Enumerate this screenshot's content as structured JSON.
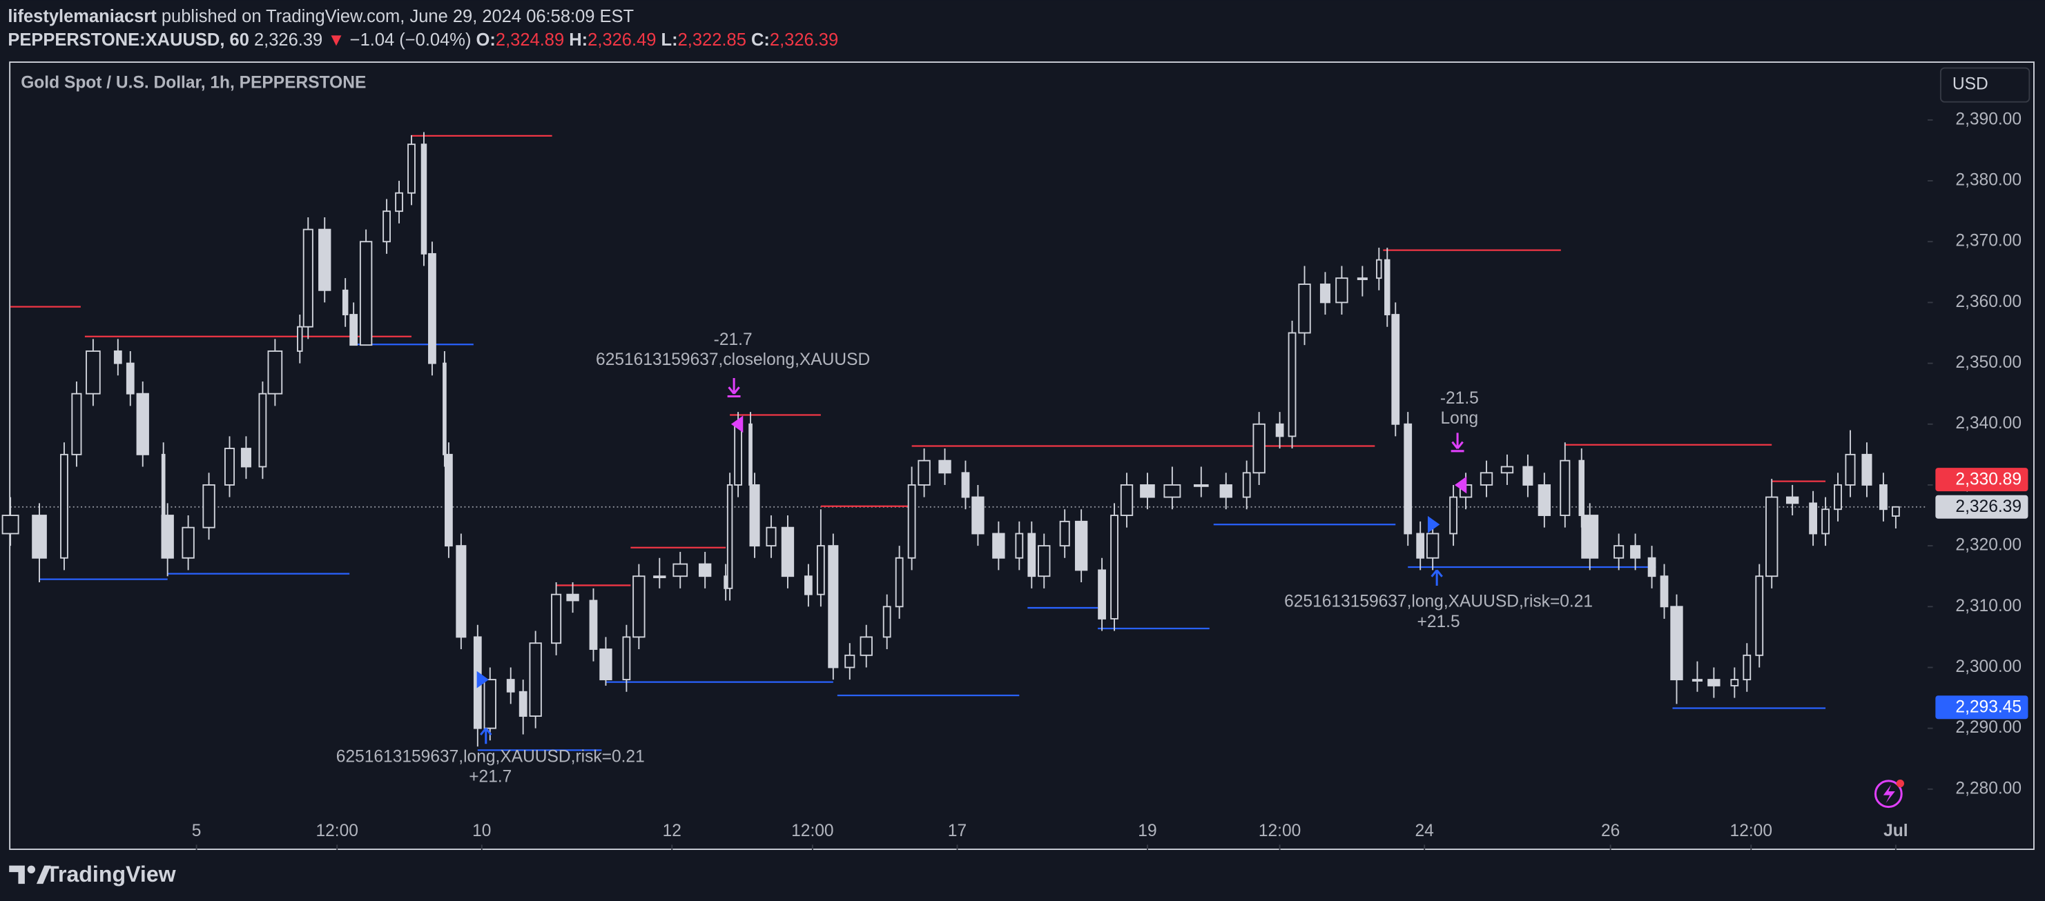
{
  "header": {
    "author": "lifestylemaniacsrt",
    "published": "published on TradingView.com, June 29, 2024 06:58:09 EST",
    "symbol": "PEPPERSTONE:XAUUSD, 60",
    "last": "2,326.39",
    "arrow": "▼",
    "change": "−1.04 (−0.04%)",
    "o_label": "O:",
    "o": "2,324.89",
    "h_label": "H:",
    "h": "2,326.49",
    "l_label": "L:",
    "l": "2,322.85",
    "c_label": "C:",
    "c": "2,326.39"
  },
  "footer": {
    "brand": "TradingView"
  },
  "chart_data": {
    "type": "candlestick",
    "title": "Gold Spot / U.S. Dollar, 1h, PEPPERSTONE",
    "currency": "USD",
    "up_color": "#d1d4dc",
    "down_color": "#d1d4dc",
    "x": [
      0,
      7,
      13,
      16,
      20,
      26,
      29,
      32,
      37,
      38,
      43,
      48,
      53,
      57,
      61,
      64,
      70,
      72,
      76,
      81,
      83,
      86,
      91,
      94,
      97,
      100,
      102,
      105,
      106,
      109,
      113,
      116,
      121,
      124,
      127,
      132,
      136,
      141,
      144,
      149,
      152,
      157,
      162,
      168,
      173,
      174,
      176,
      179,
      180,
      184,
      188,
      193,
      196,
      199,
      203,
      207,
      212,
      215,
      218,
      221,
      226,
      231,
      234,
      239,
      244,
      247,
      250,
      255,
      259,
      264,
      267,
      270,
      275,
      281,
      288,
      294,
      299,
      302,
      307,
      310,
      313,
      318,
      322,
      327,
      331,
      333,
      335,
      338,
      341,
      344,
      349,
      352,
      357,
      362,
      367,
      371,
      376,
      380,
      382,
      389,
      393,
      397,
      400,
      403,
      408,
      412,
      417,
      420,
      423,
      426,
      431,
      436,
      439,
      442,
      445,
      449,
      453,
      456
    ],
    "open": [
      2322,
      2325,
      2318,
      2335,
      2345,
      2352,
      2350,
      2345,
      2335,
      2325,
      2318,
      2323,
      2330,
      2336,
      2333,
      2345,
      2352,
      2356,
      2372,
      2362,
      2358,
      2353,
      2370,
      2375,
      2378,
      2386,
      2368,
      2350,
      2335,
      2320,
      2305,
      2290,
      2298,
      2296,
      2292,
      2304,
      2312,
      2311,
      2303,
      2298,
      2305,
      2315,
      2315,
      2317,
      2315,
      2313,
      2330,
      2340,
      2330,
      2320,
      2323,
      2315,
      2312,
      2320,
      2300,
      2302,
      2305,
      2310,
      2318,
      2330,
      2334,
      2332,
      2328,
      2322,
      2318,
      2322,
      2315,
      2320,
      2324,
      2316,
      2308,
      2325,
      2330,
      2328,
      2330,
      2330,
      2328,
      2332,
      2340,
      2338,
      2355,
      2363,
      2360,
      2364,
      2364,
      2367,
      2358,
      2340,
      2322,
      2318,
      2322,
      2328,
      2330,
      2332,
      2333,
      2330,
      2325,
      2334,
      2325,
      2318,
      2320,
      2318,
      2315,
      2310,
      2298,
      2298,
      2297,
      2298,
      2302,
      2315,
      2328,
      2327,
      2322,
      2326,
      2330,
      2335,
      2330,
      2324.89
    ],
    "high": [
      2328,
      2327,
      2337,
      2347,
      2354,
      2354,
      2352,
      2347,
      2337,
      2327,
      2325,
      2332,
      2338,
      2338,
      2347,
      2354,
      2358,
      2374,
      2374,
      2364,
      2360,
      2372,
      2377,
      2380,
      2387.5,
      2388,
      2370,
      2352,
      2337,
      2322,
      2307,
      2300,
      2300,
      2298,
      2306,
      2314,
      2314,
      2313,
      2305,
      2307,
      2317,
      2318,
      2319,
      2319,
      2317,
      2332,
      2342,
      2342,
      2332,
      2325,
      2325,
      2317,
      2326,
      2322,
      2304,
      2307,
      2312,
      2320,
      2333,
      2336,
      2336,
      2334,
      2330,
      2324,
      2324,
      2324,
      2322,
      2326,
      2326,
      2318,
      2327,
      2332,
      2332,
      2333,
      2333,
      2332,
      2334,
      2342,
      2342,
      2357,
      2366,
      2365,
      2366,
      2366,
      2369,
      2369,
      2360,
      2342,
      2324,
      2324,
      2330,
      2332,
      2334,
      2335,
      2335,
      2332,
      2337,
      2336,
      2327,
      2322,
      2322,
      2320,
      2317,
      2312,
      2301,
      2300,
      2300,
      2304,
      2317,
      2331,
      2330,
      2329,
      2328,
      2332,
      2339,
      2337,
      2332,
      2326.49
    ],
    "low": [
      2320,
      2314,
      2316,
      2333,
      2343,
      2348,
      2343,
      2333,
      2323,
      2315,
      2316,
      2321,
      2328,
      2331,
      2331,
      2343,
      2350,
      2354,
      2360,
      2356,
      2353,
      2353,
      2368,
      2373,
      2376,
      2366,
      2348,
      2333,
      2318,
      2303,
      2287,
      2288,
      2294,
      2289,
      2290,
      2302,
      2309,
      2301,
      2297,
      2296,
      2303,
      2313,
      2313,
      2313,
      2311,
      2311,
      2328,
      2328,
      2318,
      2318,
      2313,
      2310,
      2310,
      2298,
      2298,
      2300,
      2303,
      2308,
      2316,
      2328,
      2330,
      2326,
      2320,
      2316,
      2316,
      2313,
      2313,
      2318,
      2314,
      2306,
      2306,
      2323,
      2326,
      2326,
      2328,
      2326,
      2326,
      2330,
      2336,
      2336,
      2353,
      2358,
      2358,
      2361,
      2362,
      2356,
      2338,
      2320,
      2316,
      2316,
      2320,
      2326,
      2328,
      2330,
      2328,
      2323,
      2323,
      2323,
      2316,
      2316,
      2316,
      2313,
      2308,
      2294,
      2296,
      2295,
      2295,
      2296,
      2300,
      2313,
      2325,
      2320,
      2320,
      2324,
      2328,
      2328,
      2324,
      2322.85
    ],
    "close": [
      2325,
      2318,
      2335,
      2345,
      2352,
      2350,
      2345,
      2335,
      2325,
      2318,
      2323,
      2330,
      2336,
      2333,
      2345,
      2352,
      2356,
      2372,
      2362,
      2358,
      2353,
      2370,
      2375,
      2378,
      2386,
      2368,
      2350,
      2335,
      2320,
      2305,
      2290,
      2298,
      2296,
      2292,
      2304,
      2312,
      2311,
      2303,
      2298,
      2305,
      2315,
      2315,
      2317,
      2315,
      2313,
      2330,
      2340,
      2330,
      2320,
      2323,
      2315,
      2312,
      2320,
      2300,
      2302,
      2305,
      2310,
      2318,
      2330,
      2334,
      2332,
      2328,
      2322,
      2318,
      2322,
      2315,
      2320,
      2324,
      2316,
      2308,
      2325,
      2330,
      2328,
      2330,
      2330,
      2328,
      2332,
      2340,
      2338,
      2355,
      2363,
      2360,
      2364,
      2364,
      2367,
      2358,
      2340,
      2322,
      2318,
      2322,
      2328,
      2330,
      2332,
      2333,
      2330,
      2325,
      2334,
      2325,
      2318,
      2320,
      2318,
      2315,
      2310,
      2298,
      2298,
      2297,
      2298,
      2302,
      2315,
      2328,
      2327,
      2322,
      2326,
      2330,
      2335,
      2330,
      2326,
      2326.39
    ],
    "xlim": [
      0,
      463.7
    ],
    "ylim": [
      2270,
      2399.4
    ],
    "xticks": [
      {
        "value": 45,
        "label": "5"
      },
      {
        "value": 79,
        "label": "12:00"
      },
      {
        "value": 114,
        "label": "10"
      },
      {
        "value": 160,
        "label": "12"
      },
      {
        "value": 194,
        "label": "12:00"
      },
      {
        "value": 229,
        "label": "17"
      },
      {
        "value": 275,
        "label": "19"
      },
      {
        "value": 307,
        "label": "12:00"
      },
      {
        "value": 342,
        "label": "24"
      },
      {
        "value": 387,
        "label": "26"
      },
      {
        "value": 421,
        "label": "12:00"
      },
      {
        "value": 456,
        "label": "Jul"
      }
    ],
    "yticks": [
      {
        "value": 2280,
        "label": "2,280.00"
      },
      {
        "value": 2290,
        "label": "2,290.00"
      },
      {
        "value": 2300,
        "label": "2,300.00"
      },
      {
        "value": 2310,
        "label": "2,310.00"
      },
      {
        "value": 2320,
        "label": "2,320.00"
      },
      {
        "value": 2330,
        "label": "2,330.00"
      },
      {
        "value": 2340,
        "label": "2,340.00"
      },
      {
        "value": 2350,
        "label": "2,350.00"
      },
      {
        "value": 2360,
        "label": "2,360.00"
      },
      {
        "value": 2370,
        "label": "2,370.00"
      },
      {
        "value": 2380,
        "label": "2,380.00"
      },
      {
        "value": 2390,
        "label": "2,390.00"
      }
    ],
    "levels": [
      {
        "price": 2359.3,
        "from": 0,
        "to": 17,
        "color": "#f23645"
      },
      {
        "price": 2354.4,
        "from": 18,
        "to": 97,
        "color": "#f23645"
      },
      {
        "price": 2387.4,
        "from": 97,
        "to": 131,
        "color": "#f23645"
      },
      {
        "price": 2314.5,
        "from": 7,
        "to": 38,
        "color": "#2962ff"
      },
      {
        "price": 2315.4,
        "from": 38,
        "to": 82,
        "color": "#2962ff"
      },
      {
        "price": 2353.1,
        "from": 83,
        "to": 112,
        "color": "#2962ff"
      },
      {
        "price": 2286.4,
        "from": 113,
        "to": 143,
        "color": "#2962ff"
      },
      {
        "price": 2313.5,
        "from": 132,
        "to": 150,
        "color": "#f23645"
      },
      {
        "price": 2319.7,
        "from": 150,
        "to": 173,
        "color": "#f23645"
      },
      {
        "price": 2297.6,
        "from": 144,
        "to": 199,
        "color": "#2962ff"
      },
      {
        "price": 2341.5,
        "from": 174,
        "to": 196,
        "color": "#f23645"
      },
      {
        "price": 2326.5,
        "from": 196,
        "to": 218,
        "color": "#f23645"
      },
      {
        "price": 2295.4,
        "from": 200,
        "to": 244,
        "color": "#2962ff"
      },
      {
        "price": 2336.4,
        "from": 218,
        "to": 330,
        "color": "#f23645"
      },
      {
        "price": 2309.8,
        "from": 246,
        "to": 263,
        "color": "#2962ff"
      },
      {
        "price": 2306.4,
        "from": 263,
        "to": 290,
        "color": "#2962ff"
      },
      {
        "price": 2323.5,
        "from": 291,
        "to": 335,
        "color": "#2962ff"
      },
      {
        "price": 2368.6,
        "from": 332,
        "to": 375,
        "color": "#f23645"
      },
      {
        "price": 2316.5,
        "from": 338,
        "to": 398,
        "color": "#2962ff"
      },
      {
        "price": 2336.6,
        "from": 376,
        "to": 426,
        "color": "#f23645"
      },
      {
        "price": 2293.3,
        "from": 402,
        "to": 439,
        "color": "#2962ff"
      },
      {
        "price": 2330.6,
        "from": 426,
        "to": 439,
        "color": "#f23645"
      }
    ],
    "signals": [
      {
        "x": 115,
        "price": 2290,
        "kind": "arrow-up",
        "color": "#2962ff"
      },
      {
        "x": 114,
        "price": 2298,
        "kind": "triangle-right",
        "color": "#2962ff"
      },
      {
        "x": 175,
        "price": 2345,
        "kind": "arrow-down",
        "color": "#e040fb"
      },
      {
        "x": 176,
        "price": 2340,
        "kind": "triangle-left",
        "color": "#e040fb"
      },
      {
        "x": 345,
        "price": 2316,
        "kind": "arrow-up",
        "color": "#2962ff"
      },
      {
        "x": 344,
        "price": 2323.5,
        "kind": "triangle-right",
        "color": "#2962ff"
      },
      {
        "x": 350,
        "price": 2336,
        "kind": "arrow-down",
        "color": "#e040fb"
      },
      {
        "x": 351,
        "price": 2330,
        "kind": "triangle-left",
        "color": "#e040fb"
      }
    ],
    "annotations": [
      {
        "lines": [
          "-21.7",
          "6251613159637,closelong,XAUUSD"
        ]
      },
      {
        "lines": [
          "6251613159637,long,XAUUSD,risk=0.21",
          "+21.7"
        ]
      },
      {
        "lines": [
          "-21.5",
          "Long"
        ]
      },
      {
        "lines": [
          "6251613159637,long,XAUUSD,risk=0.21",
          "+21.5"
        ]
      }
    ],
    "price_labels": [
      {
        "value": 2330.89,
        "label": "2,330.89",
        "color": "#f23645"
      },
      {
        "value": 2326.39,
        "label": "2,326.39",
        "color": "#d1d4dc"
      },
      {
        "value": 2293.45,
        "label": "2,293.45",
        "color": "#2962ff"
      }
    ]
  }
}
